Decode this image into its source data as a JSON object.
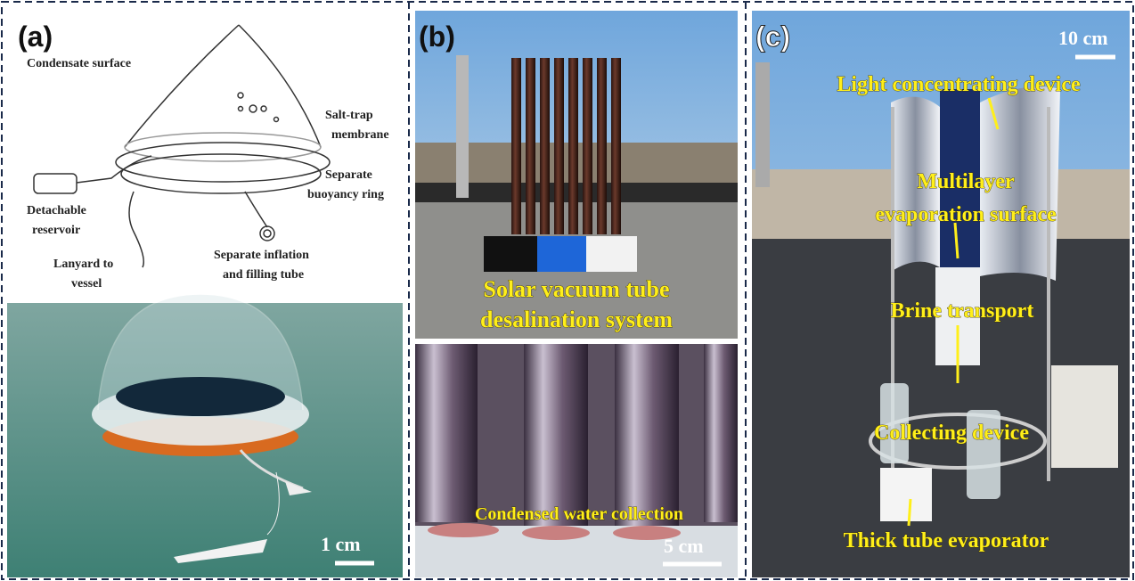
{
  "panels": [
    {
      "label": "(a)",
      "annotations": [
        {
          "lines": [
            "Condensate surface"
          ]
        },
        {
          "lines": [
            "Salt-trap",
            "membrane"
          ]
        },
        {
          "lines": [
            "Separate",
            "buoyancy ring"
          ]
        },
        {
          "lines": [
            "Detachable",
            "reservoir"
          ]
        },
        {
          "lines": [
            "Lanyard to",
            "vessel"
          ]
        },
        {
          "lines": [
            "Separate inflation",
            "and filling tube"
          ]
        }
      ],
      "scale_bar": "1 cm"
    },
    {
      "label": "(b)",
      "annotations": [
        {
          "lines": [
            "Solar vacuum tube",
            "desalination system"
          ]
        },
        {
          "lines": [
            "Condensed water collection"
          ]
        }
      ],
      "scale_bar": "5 cm"
    },
    {
      "label": "(c)",
      "annotations": [
        {
          "lines": [
            "Light concentrating device"
          ]
        },
        {
          "lines": [
            "Multilayer",
            "evaporation surface"
          ]
        },
        {
          "lines": [
            "Brine transport"
          ]
        },
        {
          "lines": [
            "Collecting device"
          ]
        },
        {
          "lines": [
            "Thick tube evaporator"
          ]
        }
      ],
      "scale_bar": "10 cm"
    }
  ]
}
